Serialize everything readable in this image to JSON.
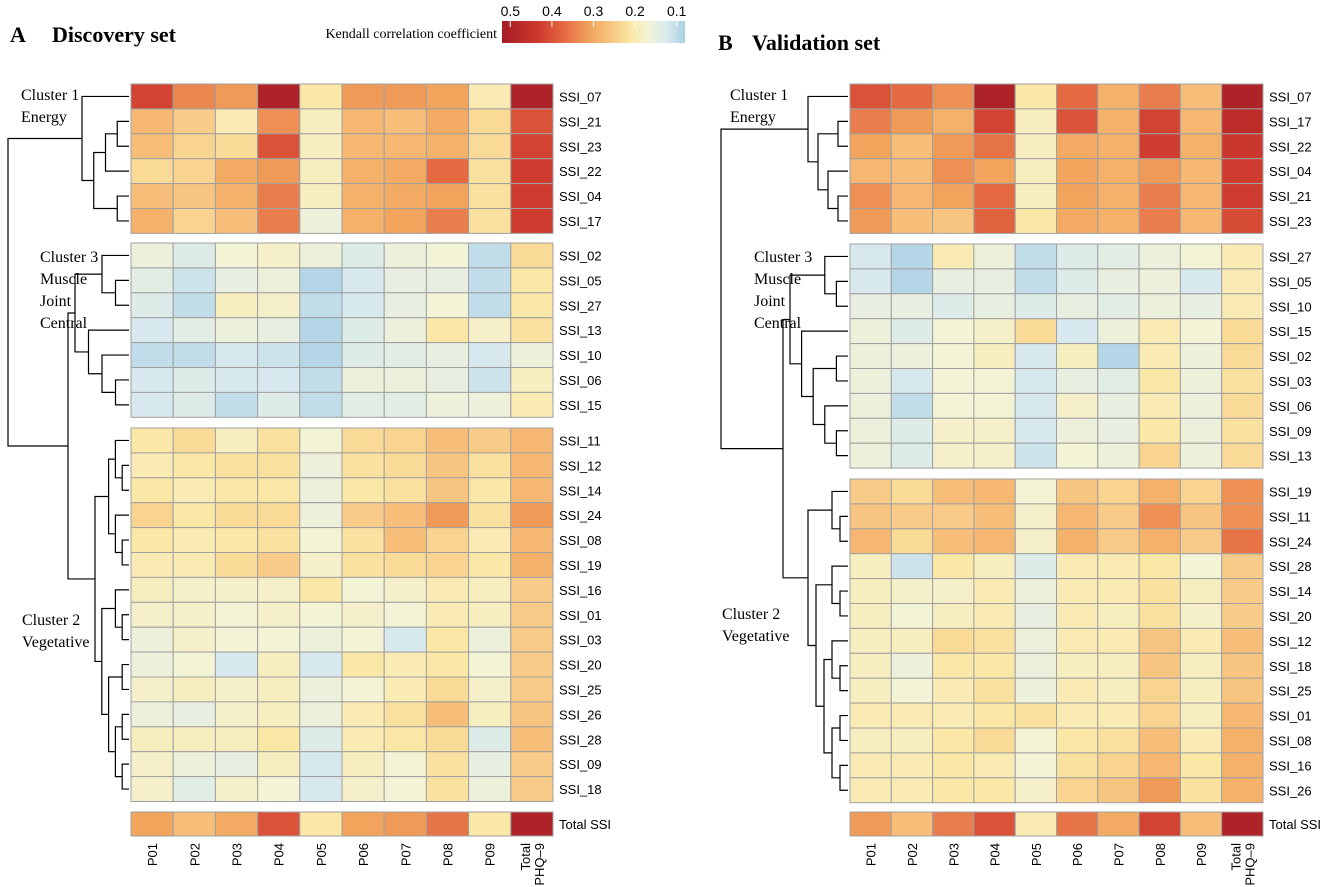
{
  "legend": {
    "title": "Kendall correlation coefficient",
    "ticks": [
      "0.5",
      "0.4",
      "0.3",
      "0.2",
      "0.1"
    ],
    "tick_values": [
      0.5,
      0.4,
      0.3,
      0.2,
      0.1
    ],
    "range": [
      0.52,
      0.08
    ],
    "scale_stops": [
      {
        "v": 0.08,
        "color": "#a9d0e3"
      },
      {
        "v": 0.12,
        "color": "#d7e9ee"
      },
      {
        "v": 0.17,
        "color": "#f3f3d6"
      },
      {
        "v": 0.21,
        "color": "#fbe8a7"
      },
      {
        "v": 0.26,
        "color": "#f7c580"
      },
      {
        "v": 0.31,
        "color": "#f2a35c"
      },
      {
        "v": 0.37,
        "color": "#e56a42"
      },
      {
        "v": 0.43,
        "color": "#cf3b2e"
      },
      {
        "v": 0.52,
        "color": "#a51c26"
      }
    ]
  },
  "chart_data": [
    {
      "type": "heatmap",
      "panel_letter": "A",
      "title": "Discovery set",
      "columns": [
        "P01",
        "P02",
        "P03",
        "P04",
        "P05",
        "P06",
        "P07",
        "P08",
        "P09",
        "Total PHQ–9"
      ],
      "column_labels": [
        [
          "P01"
        ],
        [
          "P02"
        ],
        [
          "P03"
        ],
        [
          "P04"
        ],
        [
          "P05"
        ],
        [
          "P06"
        ],
        [
          "P07"
        ],
        [
          "P08"
        ],
        [
          "P09"
        ],
        [
          "Total",
          "PHQ–9"
        ]
      ],
      "clusters": [
        {
          "label": [
            "Cluster 1",
            "Energy"
          ],
          "rows": [
            "SSI_07",
            "SSI_21",
            "SSI_23",
            "SSI_22",
            "SSI_04",
            "SSI_17"
          ],
          "values": [
            [
              0.42,
              0.34,
              0.32,
              0.5,
              0.21,
              0.32,
              0.32,
              0.31,
              0.2,
              0.5
            ],
            [
              0.28,
              0.25,
              0.2,
              0.33,
              0.19,
              0.28,
              0.27,
              0.3,
              0.23,
              0.4
            ],
            [
              0.27,
              0.24,
              0.23,
              0.4,
              0.19,
              0.28,
              0.28,
              0.29,
              0.23,
              0.42
            ],
            [
              0.23,
              0.24,
              0.3,
              0.32,
              0.19,
              0.29,
              0.3,
              0.37,
              0.22,
              0.43
            ],
            [
              0.27,
              0.26,
              0.29,
              0.35,
              0.19,
              0.29,
              0.3,
              0.31,
              0.22,
              0.43
            ],
            [
              0.29,
              0.24,
              0.27,
              0.35,
              0.16,
              0.29,
              0.31,
              0.35,
              0.22,
              0.43
            ]
          ]
        },
        {
          "label": [
            "Cluster 3",
            "Muscle",
            "Joint",
            "Central"
          ],
          "rows": [
            "SSI_02",
            "SSI_05",
            "SSI_27",
            "SSI_13",
            "SSI_10",
            "SSI_06",
            "SSI_15"
          ],
          "values": [
            [
              0.16,
              0.13,
              0.17,
              0.18,
              0.16,
              0.13,
              0.16,
              0.17,
              0.1,
              0.23
            ],
            [
              0.14,
              0.11,
              0.15,
              0.16,
              0.09,
              0.12,
              0.15,
              0.15,
              0.1,
              0.21
            ],
            [
              0.13,
              0.1,
              0.19,
              0.18,
              0.1,
              0.12,
              0.15,
              0.17,
              0.1,
              0.21
            ],
            [
              0.12,
              0.14,
              0.16,
              0.15,
              0.09,
              0.13,
              0.16,
              0.21,
              0.18,
              0.22
            ],
            [
              0.1,
              0.1,
              0.12,
              0.11,
              0.09,
              0.13,
              0.14,
              0.15,
              0.12,
              0.16
            ],
            [
              0.12,
              0.13,
              0.12,
              0.12,
              0.1,
              0.16,
              0.16,
              0.15,
              0.11,
              0.19
            ],
            [
              0.12,
              0.13,
              0.1,
              0.13,
              0.1,
              0.14,
              0.14,
              0.16,
              0.16,
              0.2
            ]
          ]
        },
        {
          "label": [
            "Cluster 2",
            "Vegetative"
          ],
          "rows": [
            "SSI_11",
            "SSI_12",
            "SSI_14",
            "SSI_24",
            "SSI_08",
            "SSI_19",
            "SSI_16",
            "SSI_01",
            "SSI_03",
            "SSI_20",
            "SSI_25",
            "SSI_26",
            "SSI_28",
            "SSI_09",
            "SSI_18"
          ],
          "values": [
            [
              0.21,
              0.23,
              0.19,
              0.22,
              0.17,
              0.23,
              0.24,
              0.27,
              0.25,
              0.28
            ],
            [
              0.2,
              0.21,
              0.22,
              0.22,
              0.16,
              0.22,
              0.23,
              0.26,
              0.22,
              0.28
            ],
            [
              0.21,
              0.2,
              0.21,
              0.21,
              0.16,
              0.21,
              0.22,
              0.26,
              0.21,
              0.28
            ],
            [
              0.24,
              0.21,
              0.23,
              0.23,
              0.16,
              0.25,
              0.27,
              0.32,
              0.22,
              0.32
            ],
            [
              0.21,
              0.2,
              0.21,
              0.22,
              0.17,
              0.22,
              0.27,
              0.24,
              0.2,
              0.28
            ],
            [
              0.2,
              0.2,
              0.23,
              0.25,
              0.18,
              0.22,
              0.23,
              0.24,
              0.21,
              0.29
            ],
            [
              0.19,
              0.18,
              0.18,
              0.18,
              0.21,
              0.17,
              0.18,
              0.2,
              0.19,
              0.25
            ],
            [
              0.18,
              0.18,
              0.17,
              0.18,
              0.17,
              0.18,
              0.17,
              0.2,
              0.19,
              0.25
            ],
            [
              0.16,
              0.18,
              0.17,
              0.17,
              0.16,
              0.17,
              0.12,
              0.21,
              0.16,
              0.25
            ],
            [
              0.16,
              0.17,
              0.12,
              0.19,
              0.12,
              0.21,
              0.2,
              0.21,
              0.17,
              0.25
            ],
            [
              0.18,
              0.19,
              0.18,
              0.19,
              0.16,
              0.17,
              0.2,
              0.23,
              0.18,
              0.25
            ],
            [
              0.16,
              0.15,
              0.18,
              0.19,
              0.16,
              0.2,
              0.22,
              0.27,
              0.19,
              0.26
            ],
            [
              0.19,
              0.19,
              0.19,
              0.21,
              0.13,
              0.2,
              0.21,
              0.23,
              0.13,
              0.27
            ],
            [
              0.18,
              0.16,
              0.15,
              0.19,
              0.12,
              0.19,
              0.17,
              0.22,
              0.15,
              0.25
            ],
            [
              0.18,
              0.14,
              0.18,
              0.17,
              0.12,
              0.18,
              0.17,
              0.22,
              0.16,
              0.25
            ]
          ]
        }
      ],
      "total": {
        "label": "Total SSI",
        "values": [
          0.31,
          0.27,
          0.3,
          0.4,
          0.21,
          0.31,
          0.32,
          0.36,
          0.21,
          0.5
        ]
      }
    },
    {
      "type": "heatmap",
      "panel_letter": "B",
      "title": "Validation set",
      "columns": [
        "P01",
        "P02",
        "P03",
        "P04",
        "P05",
        "P06",
        "P07",
        "P08",
        "P09",
        "Total PHQ–9"
      ],
      "column_labels": [
        [
          "P01"
        ],
        [
          "P02"
        ],
        [
          "P03"
        ],
        [
          "P04"
        ],
        [
          "P05"
        ],
        [
          "P06"
        ],
        [
          "P07"
        ],
        [
          "P08"
        ],
        [
          "P09"
        ],
        [
          "Total",
          "PHQ–9"
        ]
      ],
      "clusters": [
        {
          "label": [
            "Cluster 1",
            "Energy"
          ],
          "rows": [
            "SSI_07",
            "SSI_17",
            "SSI_22",
            "SSI_04",
            "SSI_21",
            "SSI_23"
          ],
          "values": [
            [
              0.4,
              0.37,
              0.33,
              0.5,
              0.21,
              0.37,
              0.29,
              0.35,
              0.27,
              0.5
            ],
            [
              0.35,
              0.32,
              0.29,
              0.42,
              0.19,
              0.4,
              0.29,
              0.42,
              0.28,
              0.47
            ],
            [
              0.31,
              0.27,
              0.32,
              0.36,
              0.19,
              0.3,
              0.29,
              0.43,
              0.29,
              0.44
            ],
            [
              0.28,
              0.27,
              0.33,
              0.31,
              0.19,
              0.31,
              0.29,
              0.32,
              0.28,
              0.43
            ],
            [
              0.33,
              0.28,
              0.31,
              0.37,
              0.19,
              0.31,
              0.29,
              0.35,
              0.28,
              0.43
            ],
            [
              0.32,
              0.27,
              0.26,
              0.38,
              0.21,
              0.3,
              0.29,
              0.35,
              0.28,
              0.41
            ]
          ]
        },
        {
          "label": [
            "Cluster 3",
            "Muscle",
            "Joint",
            "Central"
          ],
          "rows": [
            "SSI_27",
            "SSI_05",
            "SSI_10",
            "SSI_15",
            "SSI_02",
            "SSI_03",
            "SSI_06",
            "SSI_09",
            "SSI_13"
          ],
          "values": [
            [
              0.12,
              0.09,
              0.2,
              0.16,
              0.1,
              0.13,
              0.14,
              0.16,
              0.17,
              0.2
            ],
            [
              0.12,
              0.09,
              0.15,
              0.15,
              0.1,
              0.13,
              0.15,
              0.16,
              0.12,
              0.2
            ],
            [
              0.15,
              0.15,
              0.13,
              0.15,
              0.13,
              0.15,
              0.14,
              0.16,
              0.15,
              0.2
            ],
            [
              0.16,
              0.13,
              0.17,
              0.18,
              0.23,
              0.12,
              0.16,
              0.2,
              0.17,
              0.23
            ],
            [
              0.16,
              0.16,
              0.17,
              0.19,
              0.12,
              0.19,
              0.09,
              0.2,
              0.16,
              0.23
            ],
            [
              0.16,
              0.12,
              0.17,
              0.17,
              0.12,
              0.15,
              0.14,
              0.21,
              0.16,
              0.22
            ],
            [
              0.16,
              0.1,
              0.17,
              0.17,
              0.12,
              0.18,
              0.15,
              0.2,
              0.16,
              0.23
            ],
            [
              0.16,
              0.13,
              0.18,
              0.18,
              0.12,
              0.16,
              0.15,
              0.21,
              0.16,
              0.22
            ],
            [
              0.16,
              0.13,
              0.18,
              0.18,
              0.11,
              0.17,
              0.16,
              0.24,
              0.16,
              0.23
            ]
          ]
        },
        {
          "label": [
            "Cluster 2",
            "Vegetative"
          ],
          "rows": [
            "SSI_19",
            "SSI_11",
            "SSI_24",
            "SSI_28",
            "SSI_14",
            "SSI_20",
            "SSI_12",
            "SSI_18",
            "SSI_25",
            "SSI_01",
            "SSI_08",
            "SSI_16",
            "SSI_26"
          ],
          "values": [
            [
              0.25,
              0.23,
              0.27,
              0.28,
              0.17,
              0.26,
              0.24,
              0.29,
              0.24,
              0.33
            ],
            [
              0.26,
              0.25,
              0.25,
              0.27,
              0.18,
              0.28,
              0.25,
              0.33,
              0.26,
              0.33
            ],
            [
              0.28,
              0.23,
              0.27,
              0.28,
              0.18,
              0.29,
              0.25,
              0.29,
              0.25,
              0.36
            ],
            [
              0.19,
              0.11,
              0.21,
              0.19,
              0.13,
              0.2,
              0.2,
              0.21,
              0.17,
              0.25
            ],
            [
              0.19,
              0.18,
              0.18,
              0.2,
              0.16,
              0.2,
              0.2,
              0.22,
              0.19,
              0.25
            ],
            [
              0.19,
              0.17,
              0.19,
              0.2,
              0.15,
              0.2,
              0.19,
              0.22,
              0.18,
              0.25
            ],
            [
              0.19,
              0.19,
              0.23,
              0.22,
              0.16,
              0.2,
              0.2,
              0.26,
              0.2,
              0.27
            ],
            [
              0.19,
              0.16,
              0.21,
              0.21,
              0.16,
              0.19,
              0.19,
              0.26,
              0.19,
              0.26
            ],
            [
              0.19,
              0.17,
              0.2,
              0.22,
              0.16,
              0.2,
              0.19,
              0.24,
              0.19,
              0.26
            ],
            [
              0.2,
              0.2,
              0.2,
              0.21,
              0.22,
              0.2,
              0.2,
              0.24,
              0.19,
              0.28
            ],
            [
              0.19,
              0.19,
              0.21,
              0.23,
              0.17,
              0.21,
              0.22,
              0.27,
              0.2,
              0.29
            ],
            [
              0.2,
              0.2,
              0.21,
              0.2,
              0.17,
              0.22,
              0.24,
              0.28,
              0.21,
              0.29
            ],
            [
              0.2,
              0.2,
              0.21,
              0.21,
              0.18,
              0.24,
              0.26,
              0.32,
              0.22,
              0.29
            ]
          ]
        }
      ],
      "total": {
        "label": "Total SSI",
        "values": [
          0.32,
          0.27,
          0.35,
          0.4,
          0.2,
          0.36,
          0.3,
          0.42,
          0.27,
          0.5
        ]
      }
    }
  ]
}
